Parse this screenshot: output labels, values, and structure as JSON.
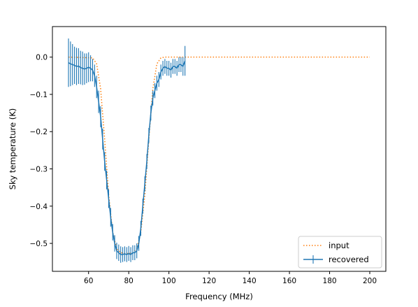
{
  "chart_data": {
    "type": "line",
    "title": "",
    "xlabel": "Frequency (MHz)",
    "ylabel": "Sky temperature (K)",
    "xlim": [
      42,
      208
    ],
    "ylim": [
      -0.575,
      0.082
    ],
    "xticks": [
      60,
      80,
      100,
      120,
      140,
      160,
      180,
      200
    ],
    "yticks": [
      0.0,
      -0.1,
      -0.2,
      -0.3,
      -0.4,
      -0.5
    ],
    "ytick_labels": [
      "0.0",
      "−0.1",
      "−0.2",
      "−0.3",
      "−0.4",
      "−0.5"
    ],
    "grid": false,
    "legend_position": "lower-right",
    "series": [
      {
        "name": "input",
        "style": "dotted",
        "color": "#ff7f0e",
        "x": [
          50,
          62,
          64,
          66,
          68,
          70,
          72,
          74,
          76,
          78,
          80,
          82,
          84,
          86,
          88,
          90,
          92,
          94,
          96,
          98,
          200
        ],
        "y": [
          0.0,
          -0.002,
          -0.018,
          -0.085,
          -0.22,
          -0.37,
          -0.47,
          -0.515,
          -0.525,
          -0.527,
          -0.527,
          -0.525,
          -0.515,
          -0.47,
          -0.37,
          -0.22,
          -0.085,
          -0.018,
          -0.002,
          0.0,
          0.0
        ]
      },
      {
        "name": "recovered",
        "color": "#1f77b4",
        "errorbars": true,
        "x": [
          50,
          51,
          52,
          53,
          54,
          55,
          56,
          57,
          58,
          59,
          60,
          61,
          62,
          63,
          64,
          65,
          66,
          67,
          68,
          69,
          70,
          71,
          72,
          73,
          74,
          75,
          76,
          77,
          78,
          79,
          80,
          81,
          82,
          83,
          84,
          85,
          86,
          87,
          88,
          89,
          90,
          91,
          92,
          93,
          94,
          95,
          96,
          97,
          98,
          99,
          100,
          101,
          102,
          103,
          104,
          105,
          106,
          107,
          108
        ],
        "y": [
          -0.015,
          -0.018,
          -0.02,
          -0.022,
          -0.025,
          -0.024,
          -0.028,
          -0.03,
          -0.032,
          -0.03,
          -0.027,
          -0.03,
          -0.035,
          -0.05,
          -0.08,
          -0.12,
          -0.16,
          -0.22,
          -0.28,
          -0.33,
          -0.38,
          -0.43,
          -0.47,
          -0.5,
          -0.52,
          -0.525,
          -0.53,
          -0.53,
          -0.528,
          -0.53,
          -0.527,
          -0.53,
          -0.525,
          -0.525,
          -0.52,
          -0.5,
          -0.46,
          -0.4,
          -0.34,
          -0.28,
          -0.21,
          -0.15,
          -0.11,
          -0.09,
          -0.07,
          -0.06,
          -0.04,
          -0.03,
          -0.025,
          -0.03,
          -0.03,
          -0.035,
          -0.025,
          -0.025,
          -0.03,
          -0.02,
          -0.02,
          -0.025,
          -0.01
        ],
        "yerr": [
          0.065,
          0.06,
          0.055,
          0.05,
          0.05,
          0.048,
          0.045,
          0.045,
          0.042,
          0.04,
          0.04,
          0.035,
          0.03,
          0.03,
          0.03,
          0.03,
          0.028,
          0.028,
          0.025,
          0.025,
          0.025,
          0.025,
          0.022,
          0.022,
          0.022,
          0.022,
          0.022,
          0.02,
          0.02,
          0.02,
          0.02,
          0.02,
          0.02,
          0.02,
          0.02,
          0.02,
          0.02,
          0.02,
          0.02,
          0.02,
          0.02,
          0.02,
          0.02,
          0.02,
          0.02,
          0.02,
          0.02,
          0.02,
          0.02,
          0.02,
          0.02,
          0.02,
          0.02,
          0.02,
          0.02,
          0.02,
          0.02,
          0.025,
          0.04
        ]
      }
    ]
  }
}
